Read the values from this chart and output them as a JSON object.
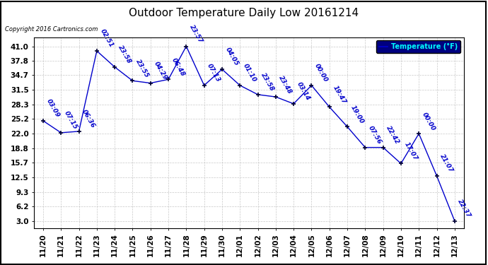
{
  "title": "Outdoor Temperature Daily Low 20161214",
  "copyright": "Copyright 2016 Cartronics.com",
  "legend_label": "Temperature (°F)",
  "x_labels": [
    "11/20",
    "11/21",
    "11/22",
    "11/23",
    "11/24",
    "11/25",
    "11/26",
    "11/27",
    "11/28",
    "11/29",
    "11/30",
    "12/01",
    "12/02",
    "12/03",
    "12/04",
    "12/05",
    "12/06",
    "12/07",
    "12/08",
    "12/09",
    "12/10",
    "12/11",
    "12/12",
    "12/13"
  ],
  "y_values": [
    24.8,
    22.2,
    22.5,
    40.0,
    36.5,
    33.5,
    33.0,
    33.8,
    41.0,
    32.5,
    36.0,
    32.5,
    30.5,
    30.0,
    28.5,
    32.5,
    27.8,
    23.5,
    19.0,
    19.0,
    15.5,
    22.0,
    12.8,
    3.0
  ],
  "point_labels": [
    "03:09",
    "07:15",
    "06:36",
    "02:51",
    "23:58",
    "23:55",
    "04:29",
    "06:48",
    "23:57",
    "07:13",
    "04:05",
    "01:10",
    "23:58",
    "23:48",
    "03:14",
    "00:00",
    "19:47",
    "19:00",
    "07:56",
    "22:42",
    "17:07",
    "00:00",
    "21:07",
    "22:37"
  ],
  "line_color": "#0000cc",
  "marker_color": "#000033",
  "text_color": "#0000cc",
  "background_color": "#ffffff",
  "grid_color": "#bbbbbb",
  "title_fontsize": 11,
  "annotation_fontsize": 6.5,
  "tick_fontsize": 7.5,
  "y_ticks": [
    3.0,
    6.2,
    9.3,
    12.5,
    15.7,
    18.8,
    22.0,
    25.2,
    28.3,
    31.5,
    34.7,
    37.8,
    41.0
  ],
  "ylim": [
    1.5,
    43.0
  ],
  "xlim": [
    -0.5,
    23.5
  ],
  "legend_bg": "#000080",
  "legend_text_color": "#00ffff",
  "border_color": "#000000"
}
